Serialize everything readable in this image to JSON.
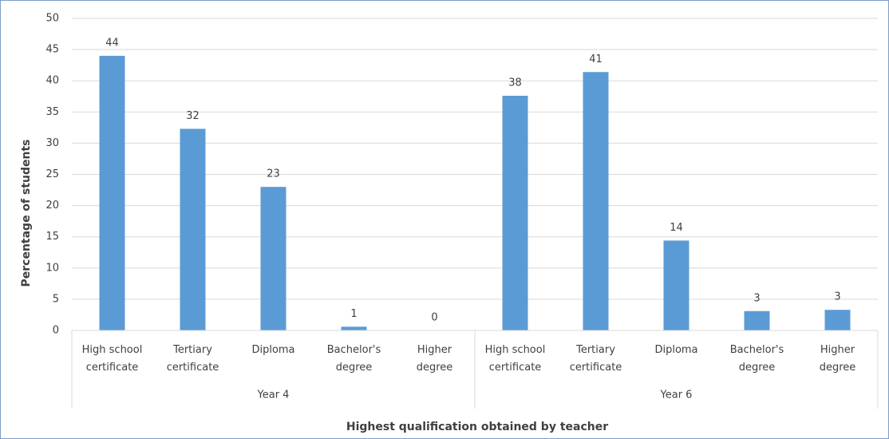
{
  "chart_data": {
    "type": "bar",
    "x_label": "Highest qualification obtained by teacher",
    "y_label": "Percentage of students",
    "groups": [
      "Year 4",
      "Year 6"
    ],
    "categories": [
      "High school certificate",
      "Tertiary certificate",
      "Diploma",
      "Bachelor's degree",
      "Higher degree",
      "High school certificate",
      "Tertiary certificate",
      "Diploma",
      "Bachelor's degree",
      "Higher degree"
    ],
    "values": [
      44,
      32.3,
      23,
      0.6,
      0,
      37.6,
      41.4,
      14.4,
      3.1,
      3.3
    ],
    "value_labels": [
      "44",
      "32",
      "23",
      "1",
      "0",
      "38",
      "41",
      "14",
      "3",
      "3"
    ],
    "color": "#5b9bd5",
    "ylim": [
      0,
      50
    ],
    "yticks": [
      0,
      5,
      10,
      15,
      20,
      25,
      30,
      35,
      40,
      45,
      50
    ],
    "grid": true
  }
}
